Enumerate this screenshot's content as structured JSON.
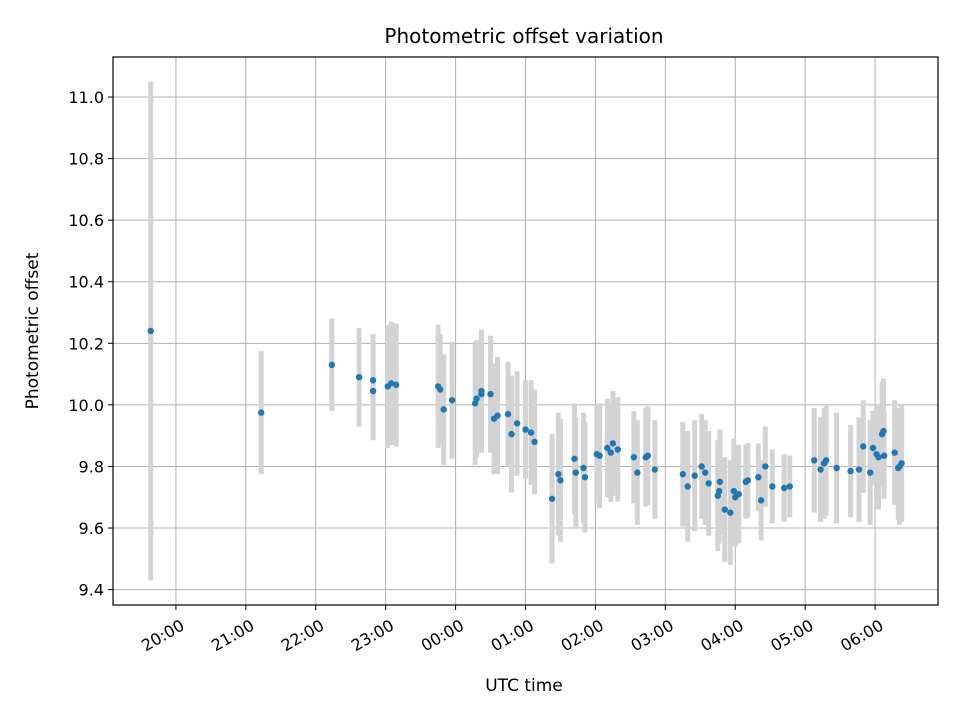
{
  "chart_data": {
    "type": "scatter",
    "title": "Photometric offset variation",
    "xlabel": "UTC time",
    "ylabel": "Photometric offset",
    "grid": true,
    "x_unit": "hours after 19:00 UTC",
    "xlim": [
      0.1,
      11.9
    ],
    "ylim": [
      9.35,
      11.13
    ],
    "y_ticks": [
      9.4,
      9.6,
      9.8,
      10.0,
      10.2,
      10.4,
      10.6,
      10.8,
      11.0
    ],
    "y_tick_labels": [
      "9.4",
      "9.6",
      "9.8",
      "10.0",
      "10.2",
      "10.4",
      "10.6",
      "10.8",
      "11.0"
    ],
    "x_ticks": [
      1,
      2,
      3,
      4,
      5,
      6,
      7,
      8,
      9,
      10,
      11
    ],
    "x_tick_labels": [
      "20:00",
      "21:00",
      "22:00",
      "23:00",
      "00:00",
      "01:00",
      "02:00",
      "03:00",
      "04:00",
      "05:00",
      "06:00"
    ],
    "point_color": "#1f77b4",
    "errorbar_color": "#d3d3d3",
    "points": [
      [
        0.64,
        10.24,
        0.81
      ],
      [
        2.22,
        9.975,
        0.2
      ],
      [
        3.23,
        10.13,
        0.15
      ],
      [
        3.62,
        10.09,
        0.16
      ],
      [
        3.82,
        10.08,
        0.15
      ],
      [
        3.82,
        10.045,
        0.16
      ],
      [
        4.03,
        10.06,
        0.2
      ],
      [
        4.08,
        10.07,
        0.2
      ],
      [
        4.15,
        10.065,
        0.2
      ],
      [
        4.75,
        10.06,
        0.2
      ],
      [
        4.78,
        10.05,
        0.18
      ],
      [
        4.83,
        9.985,
        0.18
      ],
      [
        4.95,
        10.015,
        0.19
      ],
      [
        5.28,
        10.005,
        0.2
      ],
      [
        5.3,
        10.02,
        0.19
      ],
      [
        5.37,
        10.035,
        0.19
      ],
      [
        5.37,
        10.045,
        0.2
      ],
      [
        5.5,
        10.035,
        0.19
      ],
      [
        5.55,
        9.955,
        0.18
      ],
      [
        5.6,
        9.965,
        0.19
      ],
      [
        5.75,
        9.97,
        0.17
      ],
      [
        5.8,
        9.905,
        0.19
      ],
      [
        5.88,
        9.94,
        0.17
      ],
      [
        6.0,
        9.92,
        0.16
      ],
      [
        6.08,
        9.91,
        0.17
      ],
      [
        6.13,
        9.88,
        0.17
      ],
      [
        6.38,
        9.695,
        0.21
      ],
      [
        6.47,
        9.775,
        0.2
      ],
      [
        6.5,
        9.755,
        0.2
      ],
      [
        6.7,
        9.825,
        0.18
      ],
      [
        6.72,
        9.78,
        0.18
      ],
      [
        6.83,
        9.795,
        0.18
      ],
      [
        6.85,
        9.765,
        0.18
      ],
      [
        7.02,
        9.84,
        0.16
      ],
      [
        7.06,
        9.835,
        0.17
      ],
      [
        7.17,
        9.86,
        0.16
      ],
      [
        7.22,
        9.845,
        0.16
      ],
      [
        7.25,
        9.875,
        0.17
      ],
      [
        7.32,
        9.855,
        0.17
      ],
      [
        7.55,
        9.83,
        0.15
      ],
      [
        7.6,
        9.78,
        0.17
      ],
      [
        7.72,
        9.83,
        0.16
      ],
      [
        7.75,
        9.835,
        0.16
      ],
      [
        7.85,
        9.79,
        0.16
      ],
      [
        8.25,
        9.775,
        0.17
      ],
      [
        8.32,
        9.735,
        0.18
      ],
      [
        8.42,
        9.77,
        0.18
      ],
      [
        8.52,
        9.8,
        0.17
      ],
      [
        8.57,
        9.78,
        0.17
      ],
      [
        8.62,
        9.745,
        0.17
      ],
      [
        8.75,
        9.705,
        0.18
      ],
      [
        8.77,
        9.72,
        0.17
      ],
      [
        8.78,
        9.75,
        0.17
      ],
      [
        8.85,
        9.66,
        0.17
      ],
      [
        8.93,
        9.65,
        0.17
      ],
      [
        8.98,
        9.72,
        0.17
      ],
      [
        9.0,
        9.7,
        0.16
      ],
      [
        9.05,
        9.71,
        0.16
      ],
      [
        9.15,
        9.75,
        0.12
      ],
      [
        9.18,
        9.755,
        0.12
      ],
      [
        9.33,
        9.765,
        0.11
      ],
      [
        9.37,
        9.69,
        0.13
      ],
      [
        9.43,
        9.8,
        0.13
      ],
      [
        9.53,
        9.735,
        0.12
      ],
      [
        9.7,
        9.73,
        0.11
      ],
      [
        9.78,
        9.735,
        0.1
      ],
      [
        10.13,
        9.82,
        0.17
      ],
      [
        10.22,
        9.79,
        0.17
      ],
      [
        10.27,
        9.81,
        0.18
      ],
      [
        10.3,
        9.82,
        0.18
      ],
      [
        10.45,
        9.795,
        0.18
      ],
      [
        10.65,
        9.785,
        0.15
      ],
      [
        10.77,
        9.79,
        0.17
      ],
      [
        10.83,
        9.865,
        0.15
      ],
      [
        10.93,
        9.78,
        0.17
      ],
      [
        10.97,
        9.86,
        0.12
      ],
      [
        11.02,
        9.84,
        0.15
      ],
      [
        11.05,
        9.83,
        0.17
      ],
      [
        11.1,
        9.905,
        0.17
      ],
      [
        11.12,
        9.915,
        0.17
      ],
      [
        11.13,
        9.835,
        0.14
      ],
      [
        11.28,
        9.845,
        0.17
      ],
      [
        11.33,
        9.795,
        0.17
      ],
      [
        11.35,
        9.8,
        0.19
      ],
      [
        11.38,
        9.81,
        0.19
      ]
    ]
  }
}
